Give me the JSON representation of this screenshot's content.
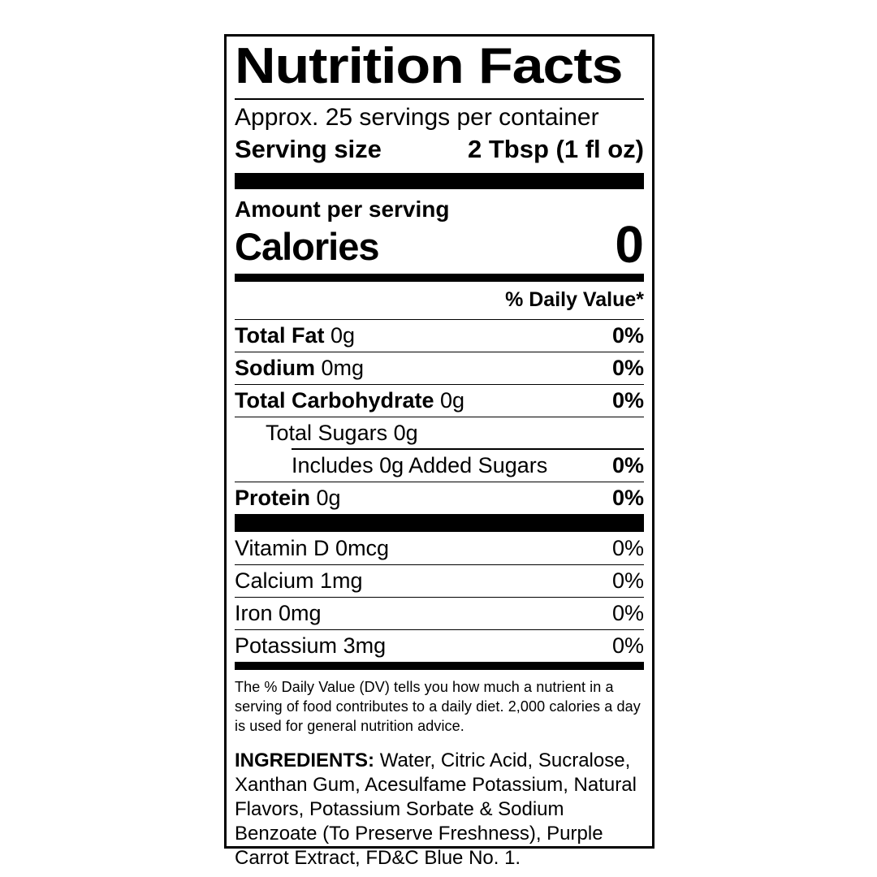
{
  "label": {
    "title": "Nutrition Facts",
    "servings_per_container": "Approx. 25 servings per container",
    "serving_size_label": "Serving size",
    "serving_size_value": "2 Tbsp (1 fl oz)",
    "amount_per_serving": "Amount per serving",
    "calories_label": "Calories",
    "calories_value": "0",
    "daily_value_header": "% Daily Value*",
    "nutrients": [
      {
        "name": "Total Fat",
        "amount": "0g",
        "dv": "0%",
        "name_bold": true,
        "dv_bold": true,
        "indent": 0,
        "partial_rule": false
      },
      {
        "name": "Sodium",
        "amount": "0mg",
        "dv": "0%",
        "name_bold": true,
        "dv_bold": true,
        "indent": 0,
        "partial_rule": false
      },
      {
        "name": "Total Carbohydrate",
        "amount": "0g",
        "dv": "0%",
        "name_bold": true,
        "dv_bold": true,
        "indent": 0,
        "partial_rule": false
      },
      {
        "name": "Total Sugars",
        "amount": "0g",
        "dv": "",
        "name_bold": false,
        "dv_bold": false,
        "indent": 1,
        "partial_rule": false
      },
      {
        "name": "Includes 0g Added Sugars",
        "amount": "",
        "dv": "0%",
        "name_bold": false,
        "dv_bold": true,
        "indent": 2,
        "partial_rule": true
      },
      {
        "name": "Protein",
        "amount": "0g",
        "dv": "0%",
        "name_bold": true,
        "dv_bold": true,
        "indent": 0,
        "partial_rule": false
      }
    ],
    "micronutrients": [
      {
        "name": "Vitamin D",
        "amount": "0mcg",
        "dv": "0%"
      },
      {
        "name": "Calcium",
        "amount": "1mg",
        "dv": "0%"
      },
      {
        "name": "Iron",
        "amount": "0mg",
        "dv": "0%"
      },
      {
        "name": "Potassium",
        "amount": "3mg",
        "dv": "0%"
      }
    ],
    "footnote": "The % Daily Value (DV) tells you how much a nutrient in a serving of food contributes to a daily diet. 2,000 calories a day is used for general nutrition advice.",
    "ingredients_label": "INGREDIENTS:",
    "ingredients_text": "Water, Citric Acid, Sucralose, Xanthan Gum, Acesulfame Potassium, Natural Flavors, Potassium Sorbate & Sodium Benzoate (To Preserve Freshness), Purple Carrot Extract, FD&C Blue No. 1.",
    "colors": {
      "text": "#000000",
      "background": "#ffffff"
    }
  }
}
